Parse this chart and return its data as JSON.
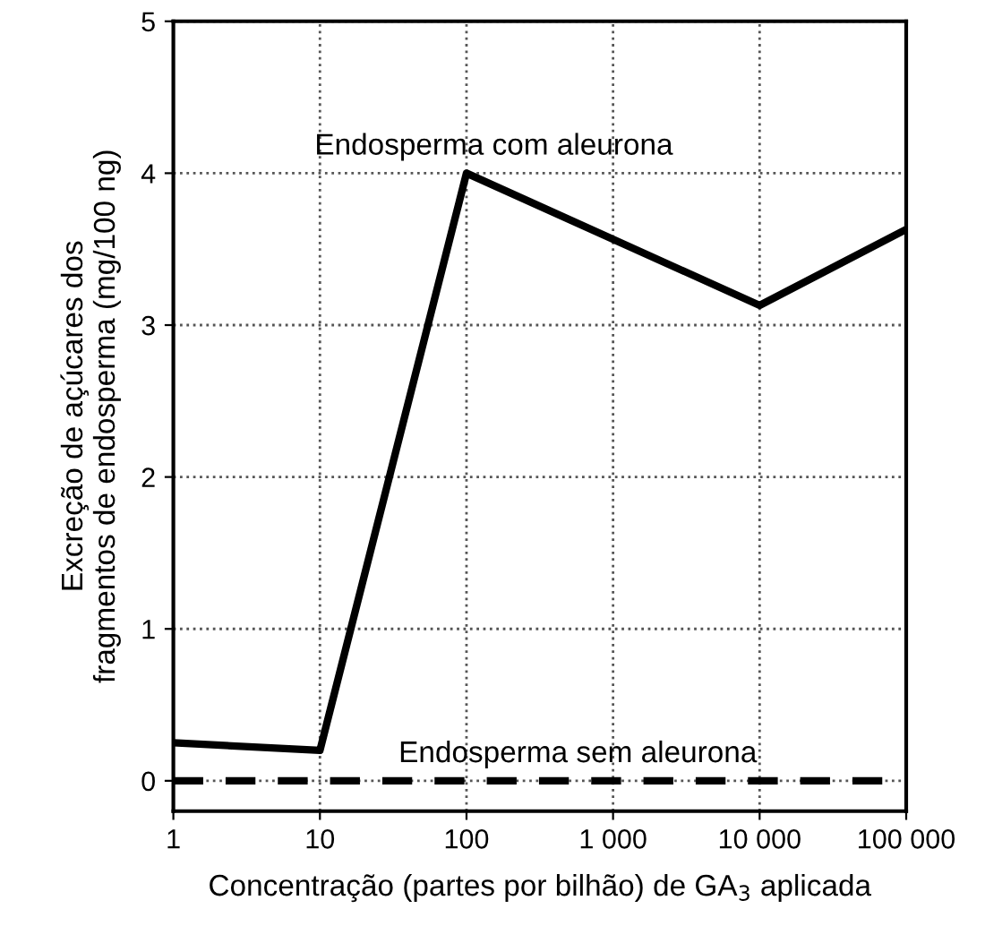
{
  "chart_data": {
    "type": "line",
    "xlabel": "Concentração (partes por bilhão) de GA$_{3}$ aplicada",
    "ylabel": "Excreção de açúcares dos\nfragmentos de endosperma (mg/100 ng)",
    "x": [
      1,
      10,
      100,
      10000,
      100000
    ],
    "series": [
      {
        "name": "Endosperma com aleurona",
        "color": "#000000",
        "values": [
          0.25,
          0.2,
          4.0,
          3.13,
          3.63
        ],
        "line_style": "solid"
      },
      {
        "name": "Endosperma sem aleurona",
        "color": "#000000",
        "values": [
          0,
          0,
          0,
          0,
          0
        ],
        "line_style": "dashed"
      }
    ],
    "log": "x",
    "xlim": [
      1,
      100000
    ],
    "ylim": [
      -0.2,
      5
    ],
    "xticks": [
      1,
      10,
      100,
      {
        "value": 1000,
        "label": "1 000"
      },
      {
        "value": 10000,
        "label": "10 000"
      },
      {
        "value": 100000,
        "label": "100 000"
      }
    ],
    "yticks": [
      0,
      1,
      2,
      3,
      4,
      5
    ],
    "grid": true,
    "marker": "none"
  }
}
